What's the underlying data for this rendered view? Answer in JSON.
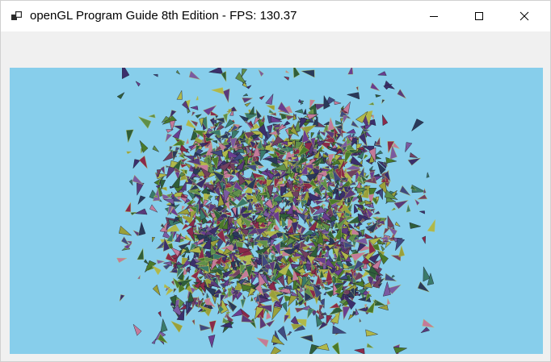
{
  "window": {
    "title": "openGL Program Guide 8th Edition - FPS: 130.37",
    "controls": {
      "minimize_icon": "minimize-icon",
      "maximize_icon": "maximize-icon",
      "close_icon": "close-icon"
    }
  },
  "viewport": {
    "background_color": "#87ceeb",
    "scene": "particle-cloud"
  },
  "colors": {
    "titlebar_bg": "#ffffff",
    "window_bg": "#f0f0f0",
    "clear_color": "#87ceeb"
  }
}
